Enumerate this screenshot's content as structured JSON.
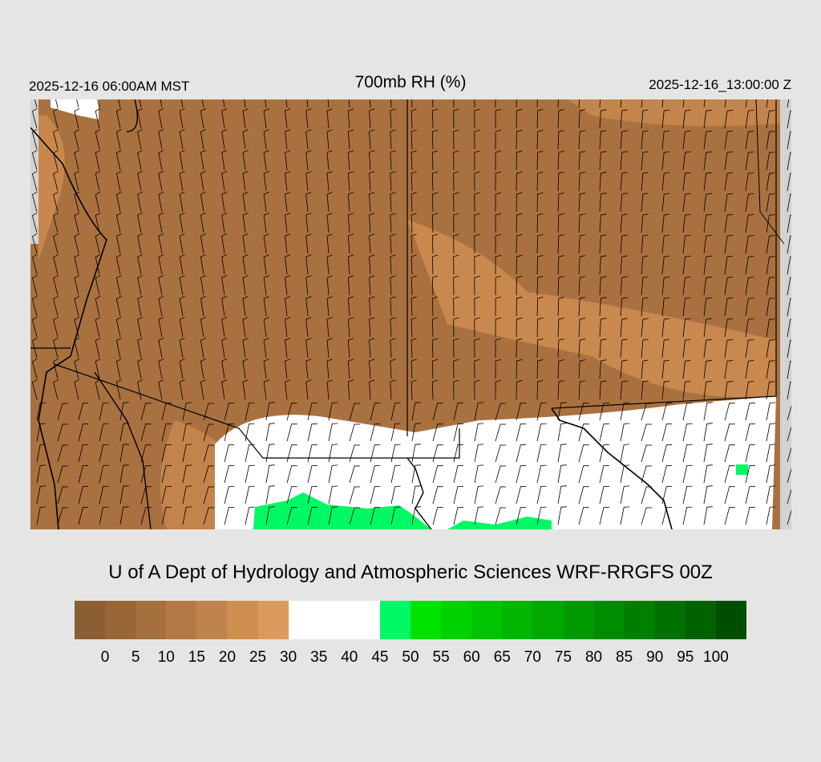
{
  "header": {
    "valid_local": "2025-12-16 06:00AM MST",
    "title": "700mb RH (%)",
    "valid_utc": "2025-12-16_13:00:00 Z"
  },
  "credit": "U of A Dept of Hydrology and Atmospheric Sciences WRF-RRGFS 00Z",
  "colorbar": {
    "colors": [
      "#8b5e34",
      "#996637",
      "#a5703d",
      "#b27a44",
      "#bf844b",
      "#d08f51",
      "#dd9a5d",
      "#ffffff",
      "#ffffff",
      "#ffffff",
      "#00f864",
      "#00e200",
      "#00d200",
      "#00c400",
      "#00b600",
      "#00a800",
      "#009a00",
      "#008c00",
      "#007e00",
      "#007000",
      "#006200",
      "#004f00"
    ],
    "labels": [
      "0",
      "5",
      "10",
      "15",
      "20",
      "25",
      "30",
      "35",
      "40",
      "45",
      "50",
      "55",
      "60",
      "65",
      "70",
      "75",
      "80",
      "85",
      "90",
      "95",
      "100"
    ]
  },
  "map": {
    "field": "700mb relative humidity",
    "background_colors": {
      "dry": "#b27a44",
      "moist_white": "#ffffff",
      "wet": "#00f864",
      "missing": "#d3d3d3"
    }
  }
}
